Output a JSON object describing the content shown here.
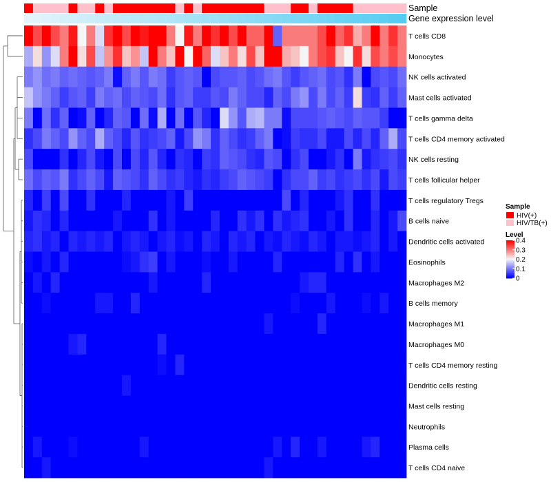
{
  "chart_data": {
    "type": "heatmap",
    "title": "",
    "annotations": {
      "sample_track_label": "Sample",
      "gene_track_label": "Gene expression level",
      "gene_track_colors": [
        "#e4f4fb",
        "#55ccf2"
      ]
    },
    "rows": [
      "T cells CD8",
      "Monocytes",
      "NK cells activated",
      "Mast cells activated",
      "T cells gamma delta",
      "T cells CD4 memory activated",
      "NK cells resting",
      "T cells follicular helper",
      "T cells regulatory  Tregs",
      "B cells naive",
      "Dendritic cells activated",
      "Eosinophils",
      "Macrophages M2",
      "B cells memory",
      "Macrophages M1",
      "Macrophages M0",
      "T cells CD4 memory resting",
      "Dendritic cells resting",
      "Mast cells resting",
      "Neutrophils",
      "Plasma cells",
      "T cells CD4 naive"
    ],
    "n_samples": 43,
    "sample_groups": [
      "HIV(+)",
      "HIV/TB(+)",
      "HIV/TB(+)",
      "HIV/TB(+)",
      "HIV/TB(+)",
      "HIV(+)",
      "HIV/TB(+)",
      "HIV/TB(+)",
      "HIV(+)",
      "HIV/TB(+)",
      "HIV(+)",
      "HIV(+)",
      "HIV(+)",
      "HIV(+)",
      "HIV(+)",
      "HIV(+)",
      "HIV(+)",
      "HIV/TB(+)",
      "HIV(+)",
      "HIV/TB(+)",
      "HIV(+)",
      "HIV(+)",
      "HIV(+)",
      "HIV(+)",
      "HIV(+)",
      "HIV(+)",
      "HIV(+)",
      "HIV/TB(+)",
      "HIV/TB(+)",
      "HIV/TB(+)",
      "HIV(+)",
      "HIV(+)",
      "HIV/TB(+)",
      "HIV(+)",
      "HIV(+)",
      "HIV(+)",
      "HIV(+)",
      "HIV/TB(+)",
      "HIV/TB(+)",
      "HIV/TB(+)",
      "HIV/TB(+)",
      "HIV/TB(+)",
      "HIV/TB(+)"
    ],
    "group_colors": {
      "HIV(+)": "#ff0000",
      "HIV/TB(+)": "#ffc0cb"
    },
    "values": [
      [
        0.4,
        0.34,
        0.4,
        0.34,
        0.3,
        0.38,
        0.2,
        0.3,
        0.18,
        0.36,
        0.4,
        0.34,
        0.4,
        0.38,
        0.4,
        0.4,
        0.3,
        0.2,
        0.38,
        0.3,
        0.4,
        0.36,
        0.4,
        0.34,
        0.4,
        0.32,
        0.32,
        0.4,
        0.08,
        0.3,
        0.3,
        0.3,
        0.3,
        0.34,
        0.4,
        0.32,
        0.36,
        0.26,
        0.3,
        0.4,
        0.3,
        0.36,
        0.3
      ],
      [
        0.14,
        0.22,
        0.12,
        0.18,
        0.3,
        0.4,
        0.22,
        0.34,
        0.16,
        0.28,
        0.36,
        0.24,
        0.28,
        0.16,
        0.4,
        0.3,
        0.24,
        0.4,
        0.2,
        0.4,
        0.32,
        0.18,
        0.24,
        0.3,
        0.22,
        0.34,
        0.24,
        0.4,
        0.4,
        0.26,
        0.24,
        0.2,
        0.3,
        0.34,
        0.36,
        0.24,
        0.2,
        0.36,
        0.22,
        0.34,
        0.3,
        0.34,
        0.3
      ],
      [
        0.1,
        0.12,
        0.09,
        0.1,
        0.08,
        0.09,
        0.08,
        0.07,
        0.08,
        0.1,
        0.01,
        0.08,
        0.1,
        0.07,
        0.1,
        0.09,
        0.05,
        0.07,
        0.08,
        0.07,
        0.0,
        0.06,
        0.07,
        0.07,
        0.08,
        0.06,
        0.07,
        0.09,
        0.1,
        0.07,
        0.05,
        0.07,
        0.08,
        0.09,
        0.06,
        0.07,
        0.04,
        0.1,
        0.0,
        0.06,
        0.07,
        0.06,
        0.09
      ],
      [
        0.16,
        0.12,
        0.1,
        0.08,
        0.05,
        0.07,
        0.08,
        0.05,
        0.1,
        0.08,
        0.09,
        0.06,
        0.08,
        0.07,
        0.06,
        0.09,
        0.04,
        0.07,
        0.08,
        0.05,
        0.05,
        0.07,
        0.06,
        0.1,
        0.08,
        0.06,
        0.06,
        0.03,
        0.08,
        0.06,
        0.1,
        0.12,
        0.06,
        0.1,
        0.06,
        0.08,
        0.05,
        0.22,
        0.05,
        0.04,
        0.08,
        0.05,
        0.08
      ],
      [
        0.1,
        0.0,
        0.09,
        0.04,
        0.08,
        0.0,
        0.01,
        0.08,
        0.0,
        0.03,
        0.08,
        0.07,
        0.0,
        0.09,
        0.01,
        0.14,
        0.0,
        0.09,
        0.0,
        0.07,
        0.03,
        0.0,
        0.18,
        0.12,
        0.07,
        0.14,
        0.15,
        0.1,
        0.1,
        0.01,
        0.06,
        0.06,
        0.06,
        0.07,
        0.08,
        0.07,
        0.06,
        0.08,
        0.07,
        0.07,
        0.05,
        0.0,
        0.0
      ],
      [
        0.04,
        0.06,
        0.1,
        0.08,
        0.06,
        0.12,
        0.08,
        0.06,
        0.14,
        0.08,
        0.06,
        0.03,
        0.07,
        0.04,
        0.05,
        0.06,
        0.08,
        0.02,
        0.06,
        0.12,
        0.1,
        0.04,
        0.08,
        0.06,
        0.04,
        0.05,
        0.08,
        0.1,
        0.0,
        0.01,
        0.05,
        0.04,
        0.04,
        0.06,
        0.02,
        0.02,
        0.06,
        0.03,
        0.06,
        0.03,
        0.08,
        0.14,
        0.06
      ],
      [
        0.06,
        0.0,
        0.0,
        0.0,
        0.04,
        0.0,
        0.03,
        0.06,
        0.02,
        0.0,
        0.06,
        0.0,
        0.06,
        0.03,
        0.07,
        0.03,
        0.0,
        0.04,
        0.03,
        0.0,
        0.05,
        0.04,
        0.08,
        0.07,
        0.06,
        0.04,
        0.03,
        0.07,
        0.06,
        0.0,
        0.04,
        0.06,
        0.0,
        0.0,
        0.02,
        0.04,
        0.0,
        0.1,
        0.02,
        0.04,
        0.05,
        0.06,
        0.04
      ],
      [
        0.09,
        0.06,
        0.08,
        0.07,
        0.1,
        0.04,
        0.06,
        0.08,
        0.06,
        0.02,
        0.08,
        0.07,
        0.06,
        0.04,
        0.08,
        0.06,
        0.04,
        0.05,
        0.03,
        0.02,
        0.04,
        0.03,
        0.05,
        0.06,
        0.08,
        0.07,
        0.06,
        0.05,
        0.0,
        0.04,
        0.06,
        0.06,
        0.08,
        0.05,
        0.06,
        0.04,
        0.05,
        0.06,
        0.04,
        0.06,
        0.02,
        0.06,
        0.05
      ],
      [
        0.03,
        0.0,
        0.05,
        0.0,
        0.06,
        0.0,
        0.0,
        0.04,
        0.0,
        0.0,
        0.0,
        0.03,
        0.0,
        0.0,
        0.0,
        0.0,
        0.02,
        0.0,
        0.05,
        0.0,
        0.0,
        0.0,
        0.0,
        0.0,
        0.0,
        0.0,
        0.0,
        0.0,
        0.0,
        0.06,
        0.0,
        0.03,
        0.0,
        0.0,
        0.0,
        0.02,
        0.04,
        0.0,
        0.0,
        0.04,
        0.0,
        0.0,
        0.0
      ],
      [
        0.02,
        0.04,
        0.03,
        0.0,
        0.03,
        0.0,
        0.0,
        0.0,
        0.0,
        0.0,
        0.02,
        0.0,
        0.0,
        0.0,
        0.04,
        0.0,
        0.02,
        0.0,
        0.0,
        0.0,
        0.0,
        0.03,
        0.0,
        0.0,
        0.04,
        0.02,
        0.04,
        0.0,
        0.04,
        0.02,
        0.03,
        0.04,
        0.0,
        0.0,
        0.02,
        0.0,
        0.04,
        0.0,
        0.0,
        0.03,
        0.0,
        0.02,
        0.06
      ],
      [
        0.03,
        0.04,
        0.02,
        0.03,
        0.0,
        0.03,
        0.02,
        0.03,
        0.02,
        0.03,
        0.0,
        0.02,
        0.03,
        0.02,
        0.0,
        0.02,
        0.03,
        0.01,
        0.02,
        0.0,
        0.03,
        0.02,
        0.0,
        0.03,
        0.02,
        0.03,
        0.0,
        0.02,
        0.01,
        0.03,
        0.02,
        0.01,
        0.03,
        0.02,
        0.0,
        0.02,
        0.02,
        0.01,
        0.02,
        0.03,
        0.0,
        0.02,
        0.0
      ],
      [
        0.01,
        0.0,
        0.02,
        0.0,
        0.03,
        0.0,
        0.0,
        0.0,
        0.0,
        0.0,
        0.0,
        0.01,
        0.02,
        0.04,
        0.05,
        0.0,
        0.02,
        0.0,
        0.0,
        0.0,
        0.01,
        0.0,
        0.0,
        0.02,
        0.0,
        0.0,
        0.0,
        0.0,
        0.03,
        0.0,
        0.0,
        0.0,
        0.0,
        0.0,
        0.0,
        0.03,
        0.0,
        0.04,
        0.0,
        0.02,
        0.0,
        0.0,
        0.0
      ],
      [
        0.0,
        0.02,
        0.0,
        0.03,
        0.0,
        0.0,
        0.0,
        0.0,
        0.0,
        0.0,
        0.0,
        0.0,
        0.0,
        0.0,
        0.02,
        0.0,
        0.0,
        0.0,
        0.0,
        0.0,
        0.03,
        0.0,
        0.0,
        0.0,
        0.0,
        0.0,
        0.0,
        0.0,
        0.0,
        0.0,
        0.0,
        0.02,
        0.03,
        0.03,
        0.0,
        0.0,
        0.0,
        0.0,
        0.0,
        0.0,
        0.0,
        0.0,
        0.0
      ],
      [
        0.0,
        0.0,
        0.01,
        0.0,
        0.0,
        0.0,
        0.0,
        0.0,
        0.02,
        0.02,
        0.0,
        0.0,
        0.03,
        0.0,
        0.0,
        0.0,
        0.0,
        0.0,
        0.0,
        0.0,
        0.0,
        0.0,
        0.0,
        0.0,
        0.0,
        0.0,
        0.0,
        0.0,
        0.0,
        0.0,
        0.01,
        0.0,
        0.0,
        0.0,
        0.02,
        0.0,
        0.0,
        0.0,
        0.01,
        0.0,
        0.02,
        0.0,
        0.0
      ],
      [
        0.0,
        0.0,
        0.0,
        0.0,
        0.0,
        0.0,
        0.0,
        0.0,
        0.0,
        0.0,
        0.0,
        0.0,
        0.0,
        0.0,
        0.0,
        0.0,
        0.0,
        0.0,
        0.0,
        0.0,
        0.0,
        0.0,
        0.0,
        0.0,
        0.0,
        0.0,
        0.0,
        0.02,
        0.0,
        0.0,
        0.0,
        0.0,
        0.0,
        0.03,
        0.0,
        0.0,
        0.0,
        0.0,
        0.0,
        0.0,
        0.0,
        0.0,
        0.0
      ],
      [
        0.0,
        0.0,
        0.0,
        0.0,
        0.0,
        0.02,
        0.03,
        0.0,
        0.0,
        0.0,
        0.0,
        0.0,
        0.0,
        0.0,
        0.0,
        0.03,
        0.0,
        0.0,
        0.0,
        0.0,
        0.0,
        0.0,
        0.0,
        0.0,
        0.0,
        0.0,
        0.0,
        0.0,
        0.0,
        0.0,
        0.0,
        0.0,
        0.0,
        0.0,
        0.0,
        0.0,
        0.0,
        0.0,
        0.0,
        0.0,
        0.0,
        0.0,
        0.0
      ],
      [
        0.0,
        0.0,
        0.0,
        0.0,
        0.0,
        0.0,
        0.0,
        0.0,
        0.0,
        0.0,
        0.0,
        0.0,
        0.0,
        0.0,
        0.0,
        0.01,
        0.0,
        0.03,
        0.0,
        0.0,
        0.0,
        0.0,
        0.0,
        0.0,
        0.0,
        0.0,
        0.0,
        0.0,
        0.0,
        0.0,
        0.0,
        0.0,
        0.0,
        0.0,
        0.0,
        0.0,
        0.0,
        0.0,
        0.0,
        0.0,
        0.0,
        0.0,
        0.0
      ],
      [
        0.0,
        0.0,
        0.0,
        0.0,
        0.0,
        0.0,
        0.0,
        0.0,
        0.0,
        0.0,
        0.0,
        0.02,
        0.0,
        0.0,
        0.0,
        0.0,
        0.0,
        0.0,
        0.0,
        0.0,
        0.0,
        0.0,
        0.0,
        0.0,
        0.0,
        0.0,
        0.0,
        0.0,
        0.0,
        0.0,
        0.0,
        0.0,
        0.0,
        0.0,
        0.0,
        0.0,
        0.0,
        0.0,
        0.0,
        0.0,
        0.0,
        0.0,
        0.0
      ],
      [
        0.0,
        0.0,
        0.0,
        0.0,
        0.0,
        0.0,
        0.0,
        0.0,
        0.0,
        0.0,
        0.0,
        0.0,
        0.0,
        0.0,
        0.0,
        0.0,
        0.0,
        0.0,
        0.0,
        0.0,
        0.0,
        0.0,
        0.0,
        0.0,
        0.0,
        0.0,
        0.0,
        0.0,
        0.0,
        0.0,
        0.0,
        0.0,
        0.0,
        0.0,
        0.0,
        0.0,
        0.0,
        0.0,
        0.0,
        0.0,
        0.0,
        0.0,
        0.0
      ],
      [
        0.0,
        0.0,
        0.0,
        0.0,
        0.0,
        0.0,
        0.0,
        0.0,
        0.0,
        0.0,
        0.0,
        0.0,
        0.0,
        0.0,
        0.0,
        0.0,
        0.0,
        0.0,
        0.0,
        0.0,
        0.0,
        0.0,
        0.0,
        0.0,
        0.0,
        0.0,
        0.0,
        0.0,
        0.0,
        0.0,
        0.0,
        0.0,
        0.0,
        0.0,
        0.0,
        0.0,
        0.0,
        0.0,
        0.0,
        0.0,
        0.0,
        0.0,
        0.0
      ],
      [
        0.0,
        0.02,
        0.0,
        0.0,
        0.0,
        0.01,
        0.0,
        0.0,
        0.0,
        0.0,
        0.0,
        0.0,
        0.0,
        0.02,
        0.0,
        0.0,
        0.0,
        0.0,
        0.0,
        0.0,
        0.0,
        0.0,
        0.0,
        0.0,
        0.0,
        0.0,
        0.0,
        0.0,
        0.02,
        0.0,
        0.03,
        0.0,
        0.0,
        0.02,
        0.0,
        0.0,
        0.0,
        0.0,
        0.02,
        0.03,
        0.0,
        0.0,
        0.0
      ],
      [
        0.0,
        0.0,
        0.02,
        0.0,
        0.0,
        0.0,
        0.0,
        0.0,
        0.0,
        0.0,
        0.0,
        0.0,
        0.0,
        0.0,
        0.0,
        0.0,
        0.0,
        0.0,
        0.0,
        0.0,
        0.0,
        0.0,
        0.0,
        0.0,
        0.0,
        0.0,
        0.0,
        0.02,
        0.0,
        0.0,
        0.0,
        0.0,
        0.0,
        0.0,
        0.0,
        0.0,
        0.0,
        0.0,
        0.0,
        0.0,
        0.0,
        0.0,
        0.0
      ]
    ],
    "color_scale": {
      "min": 0,
      "mid": 0.2,
      "max": 0.4,
      "low": "#0000ff",
      "midcolor": "#f5f5f5",
      "high": "#ff0000"
    },
    "legend": {
      "sample_title": "Sample",
      "level_title": "Level",
      "level_ticks": [
        "0.4",
        "0.3",
        "0.2",
        "0.1",
        "0"
      ],
      "level_tick_values": [
        0.4,
        0.3,
        0.2,
        0.1,
        0
      ],
      "placement": "right"
    },
    "dendrogram": {
      "side": "left",
      "merges": [
        [
          -1,
          -2
        ],
        [
          -16,
          -17
        ],
        [
          -18,
          -19
        ],
        [
          -20,
          -21
        ],
        [
          -21,
          -22
        ],
        [
          -13,
          -14
        ],
        [
          -10,
          -11
        ],
        [
          -7,
          -8
        ],
        [
          -4,
          -5
        ],
        [
          -3,
          -6
        ]
      ]
    }
  }
}
